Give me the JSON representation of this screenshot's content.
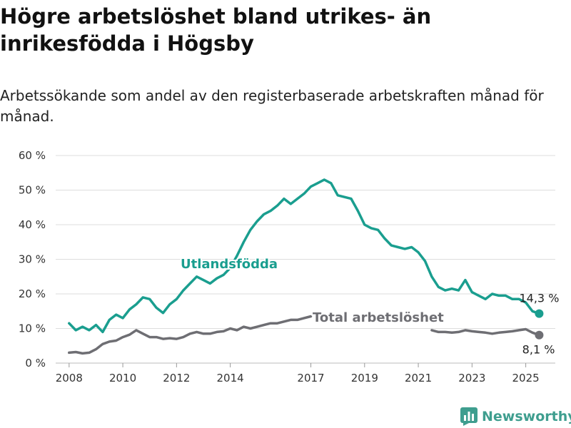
{
  "title": "Högre arbetslöshet bland utrikes- än inrikesfödda i Högsby",
  "subtitle": "Arbetssökande som andel av den registerbaserade arbetskraften månad för månad.",
  "brand": "Newsworthy",
  "colors": {
    "foreign": "#1a9e8f",
    "total": "#6e6e73",
    "grid": "#dddddd"
  },
  "chart_data": {
    "type": "line",
    "ylim": [
      0,
      60
    ],
    "y_ticks": [
      "0 %",
      "10 %",
      "20 %",
      "30 %",
      "40 %",
      "50 %",
      "60 %"
    ],
    "x_ticks": [
      "2008",
      "2010",
      "2012",
      "2014",
      "2017",
      "2019",
      "2021",
      "2023",
      "2025"
    ],
    "series": [
      {
        "name": "Utlandsfödda",
        "color": "#1a9e8f",
        "end_label": "14,3 %",
        "points": [
          [
            2008.0,
            11.5
          ],
          [
            2008.25,
            9.5
          ],
          [
            2008.5,
            10.5
          ],
          [
            2008.75,
            9.5
          ],
          [
            2009.0,
            11.0
          ],
          [
            2009.25,
            9.0
          ],
          [
            2009.5,
            12.5
          ],
          [
            2009.75,
            14.0
          ],
          [
            2010.0,
            13.0
          ],
          [
            2010.25,
            15.5
          ],
          [
            2010.5,
            17.0
          ],
          [
            2010.75,
            19.0
          ],
          [
            2011.0,
            18.5
          ],
          [
            2011.25,
            16.0
          ],
          [
            2011.5,
            14.5
          ],
          [
            2011.75,
            17.0
          ],
          [
            2012.0,
            18.5
          ],
          [
            2012.25,
            21.0
          ],
          [
            2012.5,
            23.0
          ],
          [
            2012.75,
            25.0
          ],
          [
            2013.0,
            24.0
          ],
          [
            2013.25,
            23.0
          ],
          [
            2013.5,
            24.5
          ],
          [
            2013.75,
            25.5
          ],
          [
            2014.0,
            27.5
          ],
          [
            2014.25,
            31.0
          ],
          [
            2014.5,
            35.0
          ],
          [
            2014.75,
            38.5
          ],
          [
            2015.0,
            41.0
          ],
          [
            2015.25,
            43.0
          ],
          [
            2015.5,
            44.0
          ],
          [
            2015.75,
            45.5
          ],
          [
            2016.0,
            47.5
          ],
          [
            2016.25,
            46.0
          ],
          [
            2016.5,
            47.5
          ],
          [
            2016.75,
            49.0
          ],
          [
            2017.0,
            51.0
          ],
          [
            2017.25,
            52.0
          ],
          [
            2017.5,
            53.0
          ],
          [
            2017.75,
            52.0
          ],
          [
            2018.0,
            48.5
          ],
          [
            2018.25,
            48.0
          ],
          [
            2018.5,
            47.5
          ],
          [
            2018.75,
            44.0
          ],
          [
            2019.0,
            40.0
          ],
          [
            2019.25,
            39.0
          ],
          [
            2019.5,
            38.5
          ],
          [
            2019.75,
            36.0
          ],
          [
            2020.0,
            34.0
          ],
          [
            2020.25,
            33.5
          ],
          [
            2020.5,
            33.0
          ],
          [
            2020.75,
            33.5
          ],
          [
            2021.0,
            32.0
          ],
          [
            2021.25,
            29.5
          ],
          [
            2021.5,
            25.0
          ],
          [
            2021.75,
            22.0
          ],
          [
            2022.0,
            21.0
          ],
          [
            2022.25,
            21.5
          ],
          [
            2022.5,
            21.0
          ],
          [
            2022.75,
            24.0
          ],
          [
            2023.0,
            20.5
          ],
          [
            2023.25,
            19.5
          ],
          [
            2023.5,
            18.5
          ],
          [
            2023.75,
            20.0
          ],
          [
            2024.0,
            19.5
          ],
          [
            2024.25,
            19.5
          ],
          [
            2024.5,
            18.5
          ],
          [
            2024.75,
            18.5
          ],
          [
            2025.0,
            17.5
          ],
          [
            2025.25,
            15.0
          ],
          [
            2025.5,
            14.3
          ]
        ]
      },
      {
        "name": "Total arbetslöshet",
        "color": "#6e6e73",
        "end_label": "8,1 %",
        "points": [
          [
            2008.0,
            3.0
          ],
          [
            2008.25,
            3.2
          ],
          [
            2008.5,
            2.8
          ],
          [
            2008.75,
            3.0
          ],
          [
            2009.0,
            4.0
          ],
          [
            2009.25,
            5.5
          ],
          [
            2009.5,
            6.2
          ],
          [
            2009.75,
            6.5
          ],
          [
            2010.0,
            7.5
          ],
          [
            2010.25,
            8.2
          ],
          [
            2010.5,
            9.5
          ],
          [
            2010.75,
            8.5
          ],
          [
            2011.0,
            7.5
          ],
          [
            2011.25,
            7.5
          ],
          [
            2011.5,
            7.0
          ],
          [
            2011.75,
            7.2
          ],
          [
            2012.0,
            7.0
          ],
          [
            2012.25,
            7.5
          ],
          [
            2012.5,
            8.5
          ],
          [
            2012.75,
            9.0
          ],
          [
            2013.0,
            8.5
          ],
          [
            2013.25,
            8.5
          ],
          [
            2013.5,
            9.0
          ],
          [
            2013.75,
            9.2
          ],
          [
            2014.0,
            10.0
          ],
          [
            2014.25,
            9.5
          ],
          [
            2014.5,
            10.5
          ],
          [
            2014.75,
            10.0
          ],
          [
            2015.0,
            10.5
          ],
          [
            2015.25,
            11.0
          ],
          [
            2015.5,
            11.5
          ],
          [
            2015.75,
            11.5
          ],
          [
            2016.0,
            12.0
          ],
          [
            2016.25,
            12.5
          ],
          [
            2016.5,
            12.5
          ],
          [
            2016.75,
            13.0
          ],
          [
            2017.0,
            13.5
          ]
        ],
        "points_late": [
          [
            2021.5,
            9.5
          ],
          [
            2021.75,
            9.0
          ],
          [
            2022.0,
            9.0
          ],
          [
            2022.25,
            8.8
          ],
          [
            2022.5,
            9.0
          ],
          [
            2022.75,
            9.5
          ],
          [
            2023.0,
            9.2
          ],
          [
            2023.25,
            9.0
          ],
          [
            2023.5,
            8.8
          ],
          [
            2023.75,
            8.5
          ],
          [
            2024.0,
            8.8
          ],
          [
            2024.25,
            9.0
          ],
          [
            2024.5,
            9.2
          ],
          [
            2024.75,
            9.5
          ],
          [
            2025.0,
            9.8
          ],
          [
            2025.25,
            8.8
          ],
          [
            2025.5,
            8.1
          ]
        ]
      }
    ],
    "grid": true,
    "legend": "inline labels"
  }
}
